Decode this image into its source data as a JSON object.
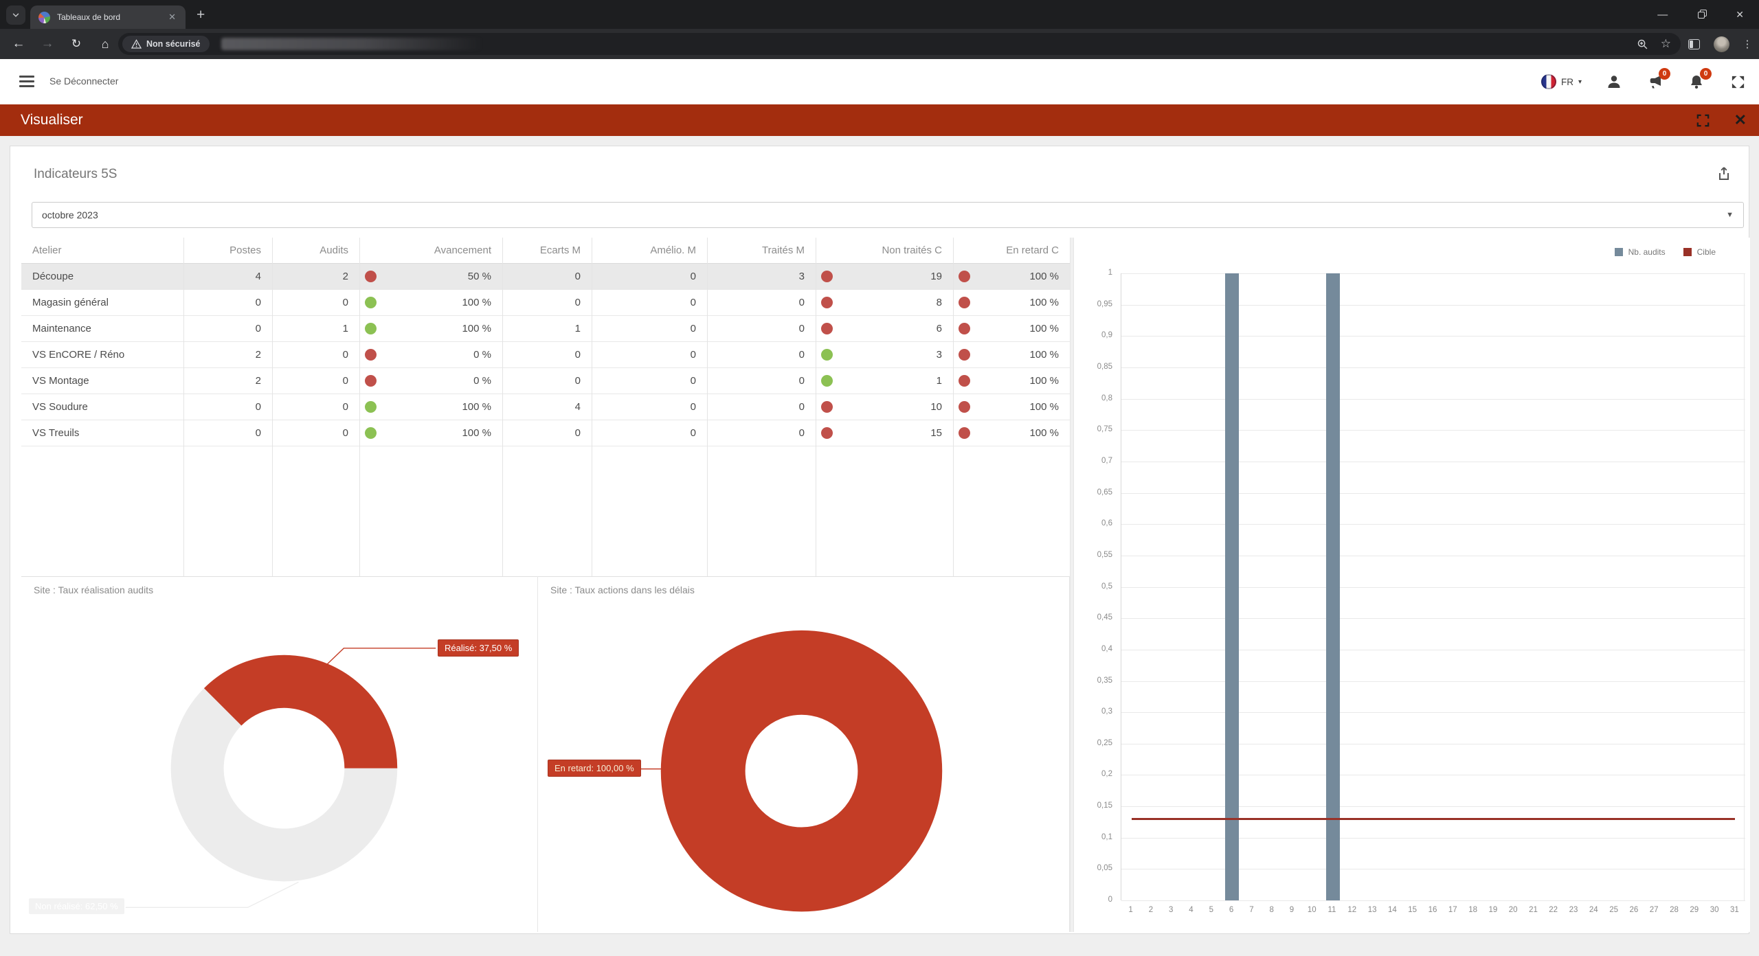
{
  "browser": {
    "tab_title": "Tableaux de bord",
    "security_chip": "Non sécurisé"
  },
  "app_header": {
    "logout_label": "Se Déconnecter",
    "language": "FR",
    "announcement_badge": "0",
    "notification_badge": "0"
  },
  "banner": {
    "title": "Visualiser"
  },
  "dashboard": {
    "title": "Indicateurs 5S",
    "period": "octobre 2023"
  },
  "table": {
    "headers": [
      "Atelier",
      "Postes",
      "Audits",
      "Avancement",
      "Ecarts M",
      "Amélio. M",
      "Traités M",
      "Non traités C",
      "En retard C"
    ],
    "rows": [
      {
        "atelier": "Découpe",
        "postes": "4",
        "audits": "2",
        "avancement_dot": "red",
        "avancement": "50 %",
        "ecarts": "0",
        "amelio": "0",
        "traites": "3",
        "non_traites_dot": "red",
        "non_traites": "19",
        "en_retard_dot": "red",
        "en_retard": "100 %",
        "selected": true
      },
      {
        "atelier": "Magasin général",
        "postes": "0",
        "audits": "0",
        "avancement_dot": "green",
        "avancement": "100 %",
        "ecarts": "0",
        "amelio": "0",
        "traites": "0",
        "non_traites_dot": "red",
        "non_traites": "8",
        "en_retard_dot": "red",
        "en_retard": "100 %",
        "selected": false
      },
      {
        "atelier": "Maintenance",
        "postes": "0",
        "audits": "1",
        "avancement_dot": "green",
        "avancement": "100 %",
        "ecarts": "1",
        "amelio": "0",
        "traites": "0",
        "non_traites_dot": "red",
        "non_traites": "6",
        "en_retard_dot": "red",
        "en_retard": "100 %",
        "selected": false
      },
      {
        "atelier": "VS EnCORE / Réno",
        "postes": "2",
        "audits": "0",
        "avancement_dot": "red",
        "avancement": "0 %",
        "ecarts": "0",
        "amelio": "0",
        "traites": "0",
        "non_traites_dot": "green",
        "non_traites": "3",
        "en_retard_dot": "red",
        "en_retard": "100 %",
        "selected": false
      },
      {
        "atelier": "VS Montage",
        "postes": "2",
        "audits": "0",
        "avancement_dot": "red",
        "avancement": "0 %",
        "ecarts": "0",
        "amelio": "0",
        "traites": "0",
        "non_traites_dot": "green",
        "non_traites": "1",
        "en_retard_dot": "red",
        "en_retard": "100 %",
        "selected": false
      },
      {
        "atelier": "VS Soudure",
        "postes": "0",
        "audits": "0",
        "avancement_dot": "green",
        "avancement": "100 %",
        "ecarts": "4",
        "amelio": "0",
        "traites": "0",
        "non_traites_dot": "red",
        "non_traites": "10",
        "en_retard_dot": "red",
        "en_retard": "100 %",
        "selected": false
      },
      {
        "atelier": "VS Treuils",
        "postes": "0",
        "audits": "0",
        "avancement_dot": "green",
        "avancement": "100 %",
        "ecarts": "0",
        "amelio": "0",
        "traites": "0",
        "non_traites_dot": "red",
        "non_traites": "15",
        "en_retard_dot": "red",
        "en_retard": "100 %",
        "selected": false
      }
    ]
  },
  "chart_data": [
    {
      "type": "pie",
      "title": "Site : Taux réalisation audits",
      "slices": [
        {
          "label": "Réalisé",
          "value": 37.5,
          "color": "#c43d26",
          "callout": "Réalisé: 37,50 %"
        },
        {
          "label": "Non réalisé",
          "value": 62.5,
          "color": "#ececec",
          "callout": "Non réalisé: 62,50 %"
        }
      ]
    },
    {
      "type": "pie",
      "title": "Site : Taux actions dans les délais",
      "slices": [
        {
          "label": "En retard",
          "value": 100,
          "color": "#c43d26",
          "callout": "En retard: 100,00 %"
        }
      ]
    },
    {
      "type": "bar",
      "title": "",
      "categories": [
        "1",
        "2",
        "3",
        "4",
        "5",
        "6",
        "7",
        "8",
        "9",
        "10",
        "11",
        "12",
        "13",
        "14",
        "15",
        "16",
        "17",
        "18",
        "19",
        "20",
        "21",
        "22",
        "23",
        "24",
        "25",
        "26",
        "27",
        "28",
        "29",
        "30",
        "31"
      ],
      "series": [
        {
          "name": "Nb. audits",
          "type": "bar",
          "color": "#758a9b",
          "values": [
            0,
            0,
            0,
            0,
            0,
            1,
            0,
            0,
            0,
            0,
            1,
            0,
            0,
            0,
            0,
            0,
            0,
            0,
            0,
            0,
            0,
            0,
            0,
            0,
            0,
            0,
            0,
            0,
            0,
            0,
            0
          ]
        },
        {
          "name": "Cible",
          "type": "line",
          "color": "#993127",
          "value": 0.13
        }
      ],
      "ylim": [
        0,
        1
      ],
      "ytick_labels": [
        "1",
        "0,95",
        "0,9",
        "0,85",
        "0,8",
        "0,75",
        "0,7",
        "0,65",
        "0,6",
        "0,55",
        "0,5",
        "0,45",
        "0,4",
        "0,35",
        "0,3",
        "0,25",
        "0,2",
        "0,15",
        "0,1",
        "0,05",
        "0"
      ],
      "grid": true,
      "legend_position": "top-right"
    }
  ],
  "colors": {
    "banner_red": "#a32d0e",
    "chart_red": "#c43d26",
    "donut_gray": "#ececec",
    "dot_red": "#c0504a",
    "dot_green": "#8cc153",
    "bar_blue": "#758a9b",
    "target_red": "#993127",
    "badge_red": "#cf3a10",
    "selected_row": "#e9e9e9"
  }
}
